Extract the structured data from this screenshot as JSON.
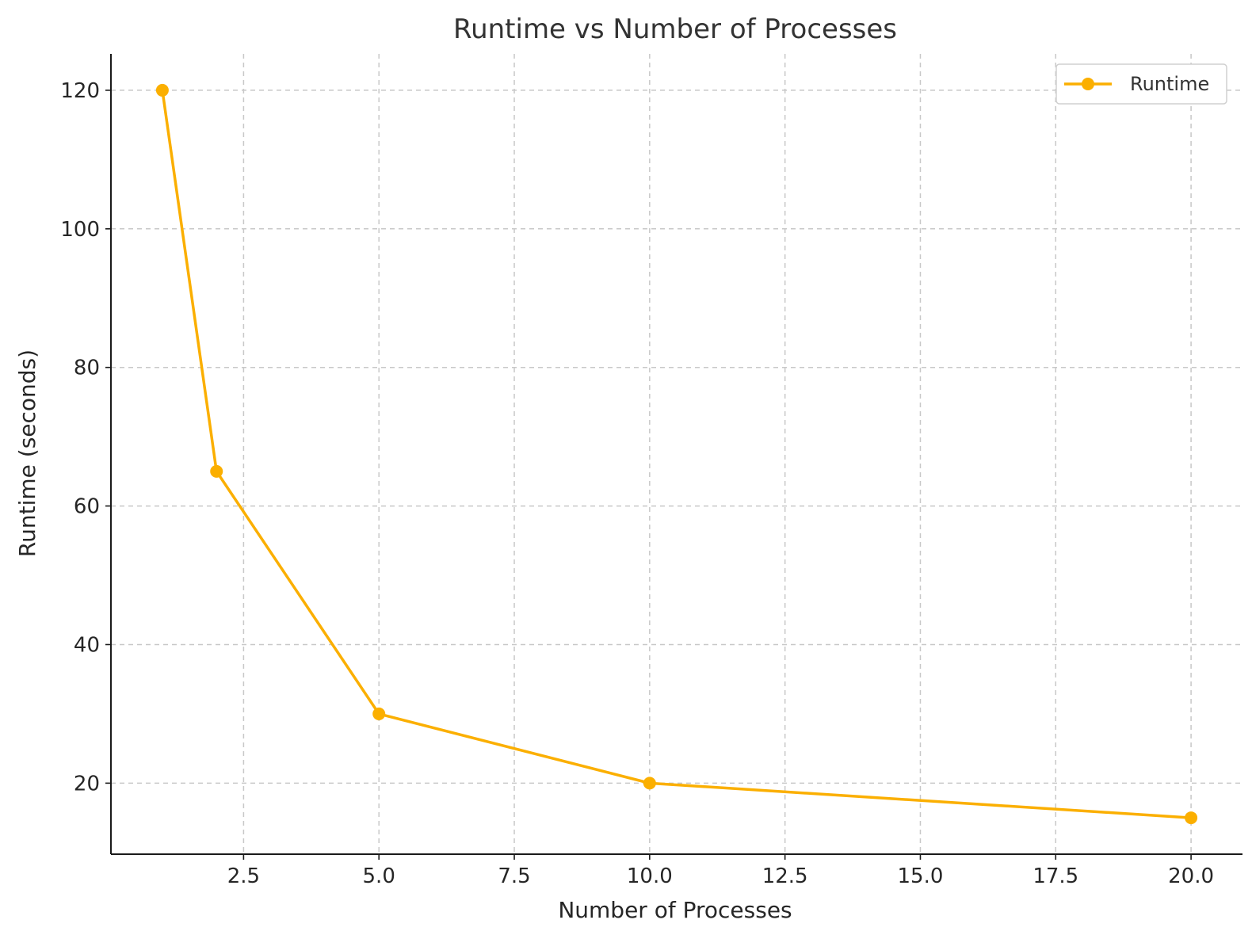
{
  "chart_data": {
    "type": "line",
    "title": "Runtime vs Number of Processes",
    "xlabel": "Number of Processes",
    "ylabel": "Runtime (seconds)",
    "x": [
      1,
      2,
      5,
      10,
      20
    ],
    "series": [
      {
        "name": "Runtime",
        "values": [
          120,
          65,
          30,
          20,
          15
        ],
        "color": "#FBAF00"
      }
    ],
    "xlim": [
      0.05,
      20.95
    ],
    "ylim": [
      9.75,
      125.25
    ],
    "xticks": [
      2.5,
      5.0,
      7.5,
      10.0,
      12.5,
      15.0,
      17.5,
      20.0
    ],
    "xtick_labels": [
      "2.5",
      "5.0",
      "7.5",
      "10.0",
      "12.5",
      "15.0",
      "17.5",
      "20.0"
    ],
    "yticks": [
      20,
      40,
      60,
      80,
      100,
      120
    ],
    "ytick_labels": [
      "20",
      "40",
      "60",
      "80",
      "100",
      "120"
    ],
    "grid": true,
    "legend": {
      "position": "top-right",
      "entries": [
        "Runtime"
      ]
    },
    "marker": "circle"
  }
}
